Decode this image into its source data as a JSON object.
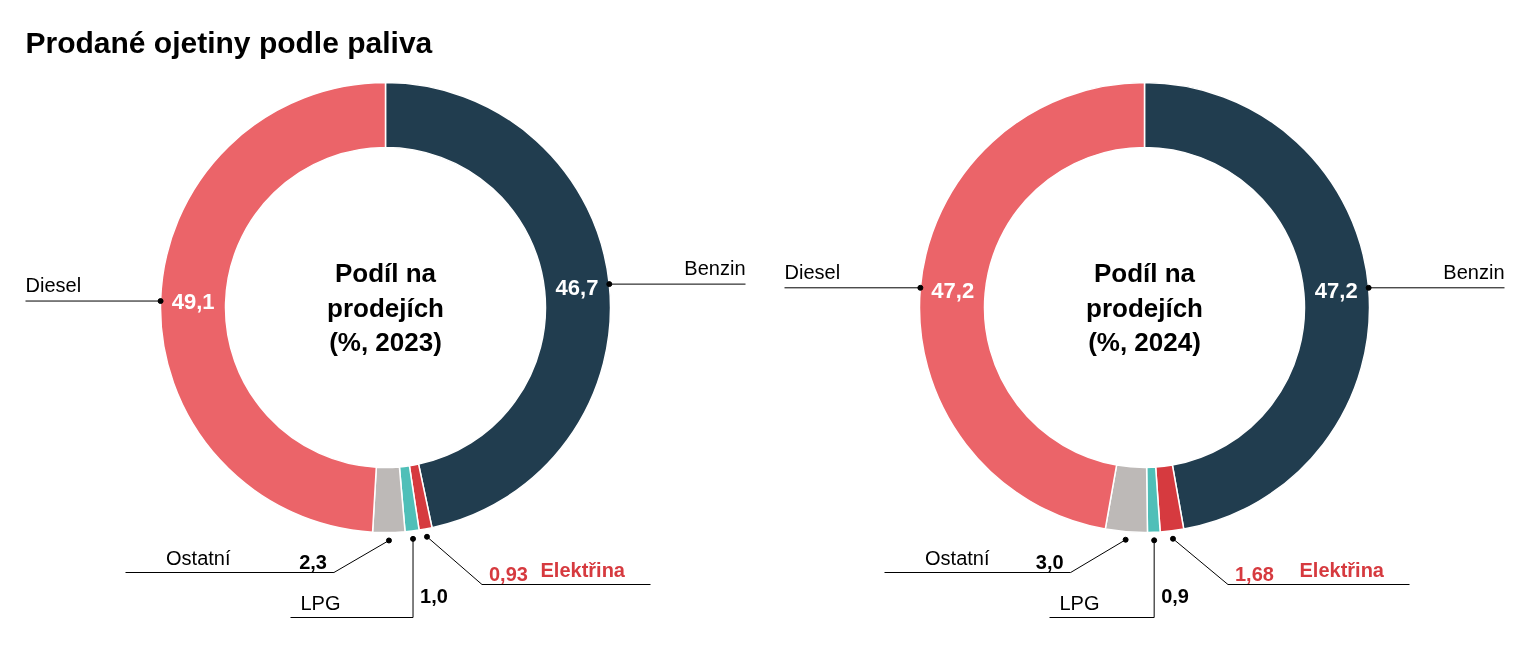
{
  "chart_data": [
    {
      "type": "donut",
      "title": "Prodané ojetiny podle paliva",
      "annotations": [
        "Podíl na\nprodejích\n(%, 2023)"
      ],
      "categories": [
        "Benzin",
        "Elektřina",
        "LPG",
        "Ostatní",
        "Diesel"
      ],
      "values": [
        46.7,
        0.93,
        1.0,
        2.3,
        49.1
      ],
      "value_labels": [
        "46,7",
        "0,93",
        "1,0",
        "2,3",
        "49,1"
      ],
      "colors": [
        "#213d4f",
        "#d63a3f",
        "#4fbfb8",
        "#bdb9b7",
        "#eb6469"
      ]
    },
    {
      "type": "donut",
      "annotations": [
        "Podíl na\nprodejích\n(%, 2024)"
      ],
      "categories": [
        "Benzin",
        "Elektřina",
        "LPG",
        "Ostatní",
        "Diesel"
      ],
      "values": [
        47.2,
        1.68,
        0.9,
        3.0,
        47.2
      ],
      "value_labels": [
        "47,2",
        "1,68",
        "0,9",
        "3,0",
        "47,2"
      ],
      "colors": [
        "#213d4f",
        "#d63a3f",
        "#4fbfb8",
        "#bdb9b7",
        "#eb6469"
      ]
    }
  ]
}
